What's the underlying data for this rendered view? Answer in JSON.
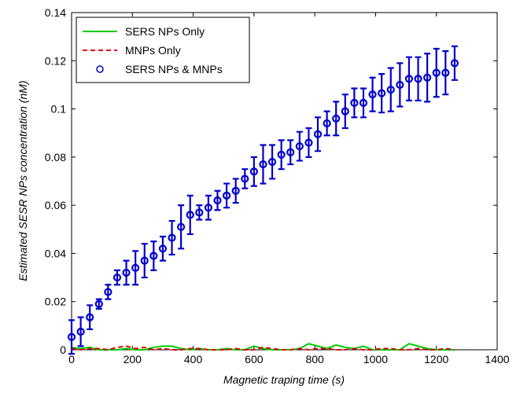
{
  "chart_data": {
    "type": "errorbar",
    "xlabel": "Magnetic traping time (s)",
    "ylabel": "Estimated SESR NPs concentration (nM)",
    "xlim": [
      0,
      1400
    ],
    "xticks": [
      0,
      200,
      400,
      600,
      800,
      1000,
      1200,
      1400
    ],
    "ylim": [
      0,
      0.14
    ],
    "yticks": [
      0,
      0.02,
      0.04,
      0.06,
      0.08,
      0.1,
      0.12,
      0.14
    ],
    "legend": "upper left",
    "x": [
      0,
      30,
      60,
      90,
      120,
      150,
      180,
      210,
      240,
      270,
      300,
      330,
      360,
      390,
      420,
      450,
      480,
      510,
      540,
      570,
      600,
      630,
      660,
      690,
      720,
      750,
      780,
      810,
      840,
      870,
      900,
      930,
      960,
      990,
      1020,
      1050,
      1080,
      1110,
      1140,
      1170,
      1200,
      1230,
      1260
    ],
    "series": [
      {
        "name": "SERS NPs Only",
        "color": "#00cc00",
        "style": "solid",
        "values": [
          0.001,
          0.0005,
          0.001,
          0,
          0,
          0,
          0.0005,
          0,
          0,
          0.001,
          0.0015,
          0.0015,
          0.0005,
          0,
          0.0005,
          0,
          0,
          0.0005,
          0,
          0,
          0.0015,
          0.0005,
          0,
          0,
          0,
          0.0005,
          0.0025,
          0.0015,
          0.0005,
          0.002,
          0.001,
          0.0005,
          0.0015,
          0,
          0,
          0,
          0,
          0.0025,
          0.0015,
          0.0005,
          0,
          0,
          0
        ]
      },
      {
        "name": "MNPs Only",
        "color": "#e00000",
        "style": "dashed",
        "values": [
          0.0005,
          0,
          0.0005,
          0.0005,
          0,
          0.001,
          0.0015,
          0.0005,
          0.001,
          0,
          0.0005,
          0,
          0,
          0.0005,
          0.0005,
          0,
          0,
          0,
          0.0005,
          0,
          0,
          0.001,
          0.0005,
          0,
          0,
          0.0005,
          0,
          0.0005,
          0.0005,
          0,
          0,
          0.0005,
          0,
          0,
          0.0005,
          0.0005,
          0,
          0,
          0.0005,
          0,
          0,
          0.0005,
          0
        ]
      },
      {
        "name": "SERS NPs & MNPs",
        "color": "#0000cc",
        "style": "marker",
        "values": [
          0.0053,
          0.0075,
          0.0135,
          0.019,
          0.024,
          0.03,
          0.032,
          0.034,
          0.037,
          0.039,
          0.042,
          0.0465,
          0.051,
          0.056,
          0.057,
          0.059,
          0.062,
          0.064,
          0.066,
          0.071,
          0.074,
          0.077,
          0.078,
          0.081,
          0.082,
          0.0845,
          0.086,
          0.0895,
          0.094,
          0.096,
          0.099,
          0.1025,
          0.1025,
          0.106,
          0.1065,
          0.108,
          0.11,
          0.1125,
          0.1125,
          0.113,
          0.115,
          0.115,
          0.119
        ],
        "errors": [
          0.007,
          0.006,
          0.005,
          0.002,
          0.003,
          0.003,
          0.005,
          0.007,
          0.007,
          0.006,
          0.005,
          0.007,
          0.009,
          0.008,
          0.003,
          0.005,
          0.004,
          0.005,
          0.005,
          0.004,
          0.006,
          0.008,
          0.007,
          0.006,
          0.005,
          0.006,
          0.006,
          0.007,
          0.005,
          0.007,
          0.007,
          0.006,
          0.006,
          0.007,
          0.008,
          0.009,
          0.009,
          0.009,
          0.009,
          0.01,
          0.01,
          0.009,
          0.007
        ]
      }
    ]
  }
}
